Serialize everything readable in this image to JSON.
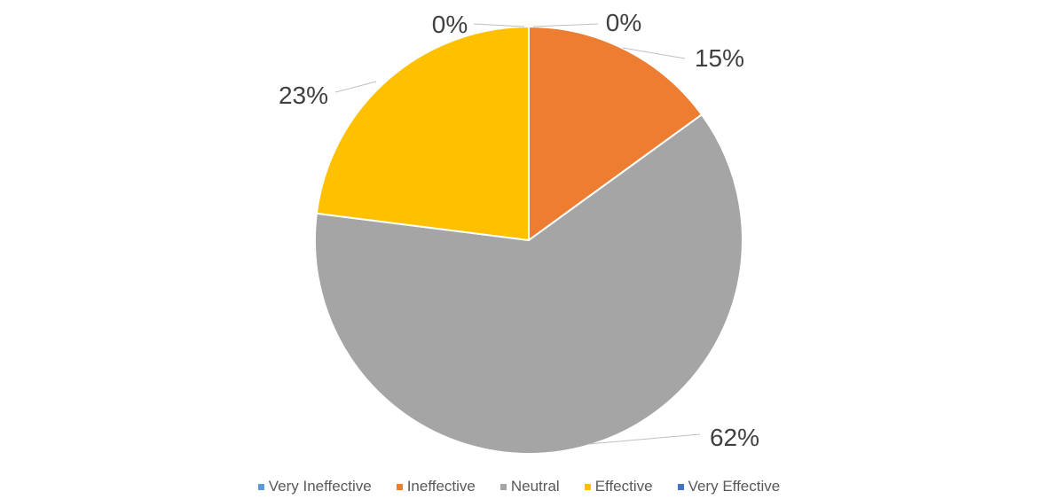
{
  "chart_data": {
    "type": "pie",
    "categories": [
      "Very Ineffective",
      "Ineffective",
      "Neutral",
      "Effective",
      "Very Effective"
    ],
    "values": [
      0,
      15,
      62,
      23,
      0
    ],
    "data_labels": [
      "0%",
      "15%",
      "62%",
      "23%",
      "0%"
    ],
    "colors": [
      "#5B9BD5",
      "#ED7D31",
      "#A5A5A5",
      "#FFC000",
      "#4472C4"
    ],
    "start_angle": "12 o'clock",
    "direction": "clockwise",
    "legend_position": "bottom"
  }
}
